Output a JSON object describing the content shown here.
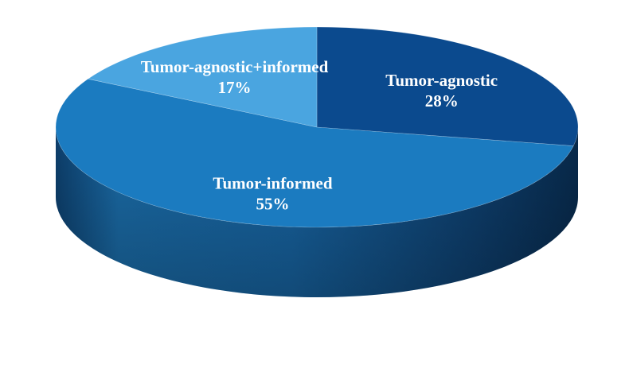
{
  "chart_data": {
    "type": "pie",
    "style": "3d",
    "slices": [
      {
        "name": "Tumor-agnostic",
        "value": 28,
        "value_label": "28%",
        "color": "#0b4a8e"
      },
      {
        "name": "Tumor-informed",
        "value": 55,
        "value_label": "55%",
        "color": "#1b7bc0"
      },
      {
        "name": "Tumor-agnostic+informed",
        "value": 17,
        "value_label": "17%",
        "color": "#4aa5e0"
      }
    ],
    "legend": "none",
    "label_color": "#ffffff"
  }
}
